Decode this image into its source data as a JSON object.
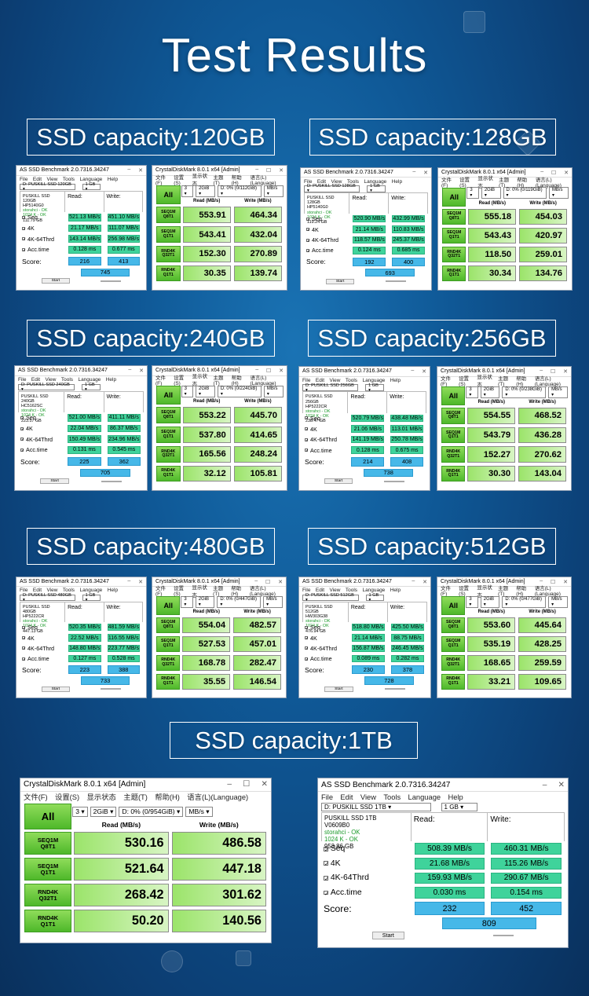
{
  "title": "Test Results",
  "asssd_title": "AS SSD Benchmark 2.0.7316.34247",
  "cdm_title": "CrystalDiskMark 8.0.1 x64 [Admin]",
  "as_menu": [
    "File",
    "Edit",
    "View",
    "Tools",
    "Language",
    "Help"
  ],
  "cdm_menu": [
    "文件(F)",
    "设置(S)",
    "显示状态",
    "主题(T)",
    "帮助(H)",
    "语言(L)(Language)"
  ],
  "as_labels": {
    "read": "Read:",
    "write": "Write:",
    "seq": "Seq",
    "k4": "4K",
    "k64": "4K-64Thrd",
    "acc": "Acc.time",
    "score": "Score:",
    "start": "Start"
  },
  "cdm_labels": {
    "all": "All",
    "read": "Read (MB/s)",
    "write": "Write (MB/s)",
    "count": "3",
    "size": "2GiB",
    "unit": "MB/s",
    "tests": [
      [
        "SEQ1M",
        "Q8T1"
      ],
      [
        "SEQ1M",
        "Q1T1"
      ],
      [
        "RND4K",
        "Q32T1"
      ],
      [
        "RND4K",
        "Q1T1"
      ]
    ]
  },
  "sections": [
    {
      "label": "SSD capacity:120GB",
      "as": {
        "drive": "D: PUSKILL SSD 120GB",
        "info": [
          "PUSKILL SSD 120GB",
          "HP5140G0",
          "storahci - OK",
          "1024 K - OK",
          "111.79 GB"
        ],
        "seq": [
          "521.13 MB/s",
          "451.10 MB/s"
        ],
        "k4": [
          "21.17 MB/s",
          "111.07 MB/s"
        ],
        "k64": [
          "143.14 MB/s",
          "256.98 MB/s"
        ],
        "acc": [
          "0.128 ms",
          "0.677 ms"
        ],
        "score": [
          "216",
          "413",
          "745"
        ]
      },
      "cdm": {
        "drive": "D: 0% (0/112GiB)",
        "vals": [
          [
            "553.91",
            "464.34"
          ],
          [
            "543.41",
            "432.04"
          ],
          [
            "152.30",
            "270.89"
          ],
          [
            "30.35",
            "139.74"
          ]
        ]
      }
    },
    {
      "label": "SSD capacity:128GB",
      "as": {
        "drive": "D: PUSKILL SSD 128GB",
        "info": [
          "PUSKILL SSD 128GB",
          "HP5140G0",
          "storahci - OK",
          "1024 K - OK",
          "119.24 GB"
        ],
        "seq": [
          "520.90 MB/s",
          "432.99 MB/s"
        ],
        "k4": [
          "21.14 MB/s",
          "110.83 MB/s"
        ],
        "k64": [
          "118.57 MB/s",
          "245.37 MB/s"
        ],
        "acc": [
          "0.124 ms",
          "0.685 ms"
        ],
        "score": [
          "192",
          "400",
          "693"
        ]
      },
      "cdm": {
        "drive": "D: 0% (0/119GiB)",
        "vals": [
          [
            "555.18",
            "454.03"
          ],
          [
            "543.43",
            "420.97"
          ],
          [
            "118.50",
            "259.01"
          ],
          [
            "30.34",
            "134.76"
          ]
        ]
      }
    },
    {
      "label": "SSD capacity:240GB",
      "as": {
        "drive": "D: PUSKILL SSD 240GB",
        "info": [
          "PUSKILL SSD 240GB",
          "HC5162SC",
          "storahci - OK",
          "1024 K - OK",
          "223.57 GB"
        ],
        "seq": [
          "521.00 MB/s",
          "411.11 MB/s"
        ],
        "k4": [
          "22.04 MB/s",
          "86.37 MB/s"
        ],
        "k64": [
          "150.49 MB/s",
          "234.96 MB/s"
        ],
        "acc": [
          "0.131 ms",
          "0.545 ms"
        ],
        "score": [
          "225",
          "362",
          "705"
        ]
      },
      "cdm": {
        "drive": "D: 0% (0/224GiB)",
        "vals": [
          [
            "553.22",
            "445.70"
          ],
          [
            "537.80",
            "414.65"
          ],
          [
            "165.56",
            "248.24"
          ],
          [
            "32.12",
            "105.81"
          ]
        ]
      }
    },
    {
      "label": "SSD capacity:256GB",
      "as": {
        "drive": "D: PUSKILL SSD 256GB",
        "info": [
          "PUSKILL SSD 256GB",
          "HP5222CR",
          "storahci - OK",
          "1024 K - OK",
          "238.47 GB"
        ],
        "seq": [
          "520.79 MB/s",
          "438.48 MB/s"
        ],
        "k4": [
          "21.06 MB/s",
          "113.01 MB/s"
        ],
        "k64": [
          "141.19 MB/s",
          "250.78 MB/s"
        ],
        "acc": [
          "0.128 ms",
          "0.675 ms"
        ],
        "score": [
          "214",
          "408",
          "738"
        ]
      },
      "cdm": {
        "drive": "D: 0% (0/238GiB)",
        "vals": [
          [
            "554.55",
            "468.52"
          ],
          [
            "543.79",
            "436.28"
          ],
          [
            "152.27",
            "270.62"
          ],
          [
            "30.30",
            "143.04"
          ]
        ]
      }
    },
    {
      "label": "SSD capacity:480GB",
      "as": {
        "drive": "D: PUSKILL SSD 480GB",
        "info": [
          "PUSKILL SSD 480GB",
          "HP5222CR",
          "storahci - OK",
          "1024 K - OK",
          "447.13 GB"
        ],
        "seq": [
          "520.35 MB/s",
          "481.59 MB/s"
        ],
        "k4": [
          "22.52 MB/s",
          "116.55 MB/s"
        ],
        "k64": [
          "148.80 MB/s",
          "223.77 MB/s"
        ],
        "acc": [
          "0.127 ms",
          "0.528 ms"
        ],
        "score": [
          "223",
          "388",
          "733"
        ]
      },
      "cdm": {
        "drive": "D: 0% (0/447GiB)",
        "vals": [
          [
            "554.04",
            "482.57"
          ],
          [
            "527.53",
            "457.01"
          ],
          [
            "168.78",
            "282.47"
          ],
          [
            "35.55",
            "146.54"
          ]
        ]
      }
    },
    {
      "label": "SSD capacity:512GB",
      "as": {
        "drive": "D: PUSKILL SSD 512GB",
        "info": [
          "PUSKILL SSD 512GB",
          "HW303G38",
          "storahci - OK",
          "1024 K - OK",
          "476.94 GB"
        ],
        "seq": [
          "518.80 MB/s",
          "425.50 MB/s"
        ],
        "k4": [
          "21.14 MB/s",
          "88.75 MB/s"
        ],
        "k64": [
          "156.87 MB/s",
          "246.45 MB/s"
        ],
        "acc": [
          "0.089 ms",
          "0.282 ms"
        ],
        "score": [
          "230",
          "378",
          "728"
        ]
      },
      "cdm": {
        "drive": "D: 0% (0/477GiB)",
        "vals": [
          [
            "553.60",
            "445.64"
          ],
          [
            "535.19",
            "428.25"
          ],
          [
            "168.65",
            "259.59"
          ],
          [
            "33.21",
            "109.65"
          ]
        ]
      }
    },
    {
      "label": "SSD capacity:1TB",
      "as": {
        "drive": "D: PUSKILL SSD 1TB",
        "info": [
          "PUSKILL SSD 1TB",
          "V0609B0",
          "storahci - OK",
          "1024 K - OK",
          "953.86 GB"
        ],
        "seq": [
          "508.39 MB/s",
          "460.31 MB/s"
        ],
        "k4": [
          "21.68 MB/s",
          "115.26 MB/s"
        ],
        "k64": [
          "159.93 MB/s",
          "290.67 MB/s"
        ],
        "acc": [
          "0.030 ms",
          "0.154 ms"
        ],
        "score": [
          "232",
          "452",
          "809"
        ]
      },
      "cdm": {
        "drive": "D: 0% (0/954GiB)",
        "vals": [
          [
            "530.16",
            "486.58"
          ],
          [
            "521.64",
            "447.18"
          ],
          [
            "268.42",
            "301.62"
          ],
          [
            "50.20",
            "140.56"
          ]
        ]
      }
    }
  ],
  "as_size": "1 GB"
}
